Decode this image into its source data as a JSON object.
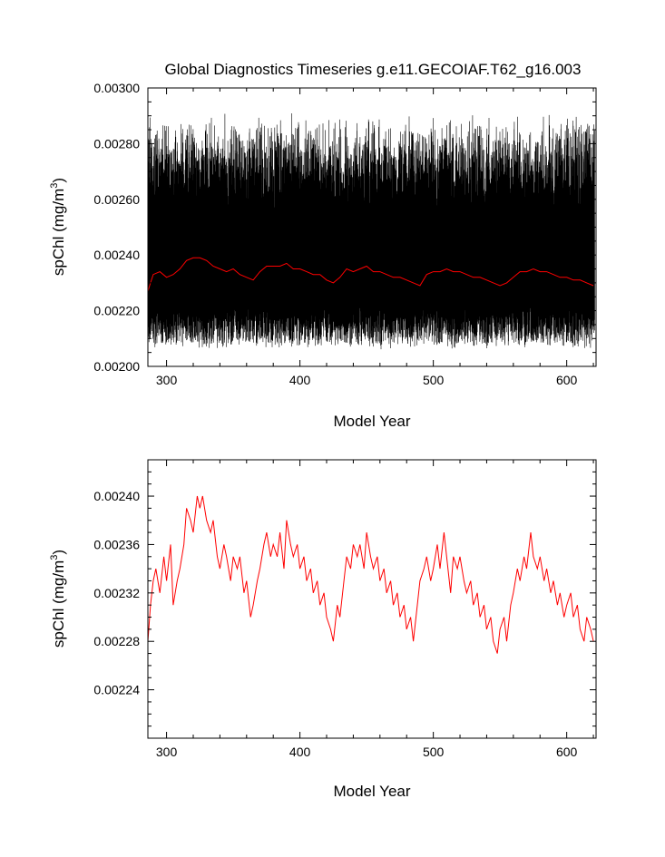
{
  "chart_data": [
    {
      "type": "line",
      "title": "Global Diagnostics Timeseries g.e11.GECOIAF.T62_g16.003",
      "xlabel": "Model Year",
      "ylabel": "spChl (mg/m",
      "ylabel_sup": "3",
      "ylabel_close": ")",
      "xlim": [
        286,
        622
      ],
      "ylim": [
        0.002,
        0.003
      ],
      "x_ticks": [
        300,
        400,
        500,
        600
      ],
      "x_tick_labels": [
        "300",
        "400",
        "500",
        "600"
      ],
      "y_ticks": [
        0.002,
        0.0022,
        0.0024,
        0.0026,
        0.0028,
        0.003
      ],
      "y_tick_labels": [
        "0.00200",
        "0.00220",
        "0.00240",
        "0.00260",
        "0.00280",
        "0.00300"
      ],
      "grid": false,
      "series": [
        {
          "color": "#000000",
          "description_seasonal": {
            "x_start": 286,
            "x_end": 621,
            "annual_range_low": 0.00212,
            "annual_range_high": 0.0028,
            "samples_per_year": 12
          }
        },
        {
          "color": "#ff0000",
          "x": [
            286,
            288,
            290,
            295,
            300,
            305,
            310,
            315,
            320,
            325,
            330,
            335,
            340,
            345,
            350,
            355,
            360,
            365,
            370,
            375,
            380,
            385,
            390,
            395,
            400,
            405,
            410,
            415,
            420,
            425,
            430,
            435,
            440,
            445,
            450,
            455,
            460,
            465,
            470,
            475,
            480,
            485,
            490,
            495,
            500,
            505,
            510,
            515,
            520,
            525,
            530,
            535,
            540,
            545,
            550,
            555,
            560,
            565,
            570,
            575,
            580,
            585,
            590,
            595,
            600,
            605,
            610,
            615,
            620
          ],
          "values": [
            0.00227,
            0.0023,
            0.00233,
            0.00234,
            0.00232,
            0.00233,
            0.00235,
            0.00238,
            0.00239,
            0.00239,
            0.00238,
            0.00236,
            0.00235,
            0.00234,
            0.00235,
            0.00233,
            0.00232,
            0.00231,
            0.00234,
            0.00236,
            0.00236,
            0.00236,
            0.00237,
            0.00235,
            0.00235,
            0.00234,
            0.00233,
            0.00233,
            0.00231,
            0.0023,
            0.00232,
            0.00235,
            0.00234,
            0.00235,
            0.00236,
            0.00234,
            0.00234,
            0.00233,
            0.00232,
            0.00232,
            0.00231,
            0.0023,
            0.00229,
            0.00233,
            0.00234,
            0.00234,
            0.00235,
            0.00234,
            0.00234,
            0.00233,
            0.00232,
            0.00232,
            0.00231,
            0.0023,
            0.00229,
            0.0023,
            0.00232,
            0.00234,
            0.00234,
            0.00235,
            0.00234,
            0.00234,
            0.00233,
            0.00232,
            0.00232,
            0.00231,
            0.00231,
            0.0023,
            0.00229
          ]
        }
      ]
    },
    {
      "type": "line",
      "title": "",
      "xlabel": "Model Year",
      "ylabel": "spChl (mg/m",
      "ylabel_sup": "3",
      "ylabel_close": ")",
      "xlim": [
        286,
        622
      ],
      "ylim": [
        0.0022,
        0.00243
      ],
      "x_ticks": [
        300,
        400,
        500,
        600
      ],
      "x_tick_labels": [
        "300",
        "400",
        "500",
        "600"
      ],
      "y_ticks": [
        0.00224,
        0.00228,
        0.00232,
        0.00236,
        0.0024
      ],
      "y_tick_labels": [
        "0.00224",
        "0.00228",
        "0.00232",
        "0.00236",
        "0.00240"
      ],
      "grid": false,
      "series": [
        {
          "color": "#ff0000",
          "x": [
            286,
            288,
            290,
            292,
            295,
            298,
            300,
            303,
            305,
            308,
            310,
            313,
            315,
            318,
            320,
            323,
            325,
            327,
            330,
            333,
            335,
            338,
            340,
            343,
            345,
            348,
            350,
            353,
            355,
            358,
            360,
            363,
            365,
            368,
            370,
            373,
            375,
            378,
            380,
            383,
            385,
            388,
            390,
            393,
            395,
            398,
            400,
            403,
            405,
            408,
            410,
            413,
            415,
            418,
            420,
            423,
            425,
            428,
            430,
            433,
            435,
            438,
            440,
            443,
            445,
            448,
            450,
            453,
            455,
            458,
            460,
            463,
            465,
            468,
            470,
            473,
            475,
            478,
            480,
            483,
            485,
            488,
            490,
            493,
            495,
            498,
            500,
            503,
            505,
            508,
            510,
            513,
            515,
            518,
            520,
            523,
            525,
            528,
            530,
            533,
            535,
            538,
            540,
            543,
            545,
            548,
            550,
            553,
            555,
            558,
            560,
            563,
            565,
            568,
            570,
            573,
            575,
            578,
            580,
            583,
            585,
            588,
            590,
            593,
            595,
            598,
            600,
            603,
            605,
            608,
            610,
            613,
            615,
            618,
            620
          ],
          "values": [
            0.00228,
            0.00231,
            0.00233,
            0.00234,
            0.00232,
            0.00235,
            0.00233,
            0.00236,
            0.00231,
            0.00233,
            0.00234,
            0.00236,
            0.00239,
            0.00238,
            0.00237,
            0.0024,
            0.00239,
            0.0024,
            0.00238,
            0.00237,
            0.00238,
            0.00235,
            0.00234,
            0.00236,
            0.00235,
            0.00233,
            0.00235,
            0.00234,
            0.00235,
            0.00232,
            0.00233,
            0.0023,
            0.00231,
            0.00233,
            0.00234,
            0.00236,
            0.00237,
            0.00235,
            0.00236,
            0.00235,
            0.00237,
            0.00234,
            0.00238,
            0.00236,
            0.00235,
            0.00236,
            0.00234,
            0.00235,
            0.00233,
            0.00234,
            0.00232,
            0.00233,
            0.00231,
            0.00232,
            0.0023,
            0.00229,
            0.00228,
            0.00231,
            0.0023,
            0.00233,
            0.00235,
            0.00234,
            0.00236,
            0.00235,
            0.00236,
            0.00234,
            0.00237,
            0.00235,
            0.00234,
            0.00235,
            0.00233,
            0.00234,
            0.00232,
            0.00233,
            0.00231,
            0.00232,
            0.0023,
            0.00231,
            0.00229,
            0.0023,
            0.00228,
            0.00231,
            0.00233,
            0.00234,
            0.00235,
            0.00233,
            0.00234,
            0.00236,
            0.00234,
            0.00237,
            0.00235,
            0.00232,
            0.00235,
            0.00234,
            0.00235,
            0.00233,
            0.00232,
            0.00233,
            0.00231,
            0.00232,
            0.0023,
            0.00231,
            0.00229,
            0.0023,
            0.00228,
            0.00227,
            0.00229,
            0.0023,
            0.00228,
            0.00231,
            0.00232,
            0.00234,
            0.00233,
            0.00235,
            0.00234,
            0.00237,
            0.00235,
            0.00234,
            0.00235,
            0.00233,
            0.00234,
            0.00232,
            0.00233,
            0.00231,
            0.00232,
            0.0023,
            0.00231,
            0.00232,
            0.0023,
            0.00231,
            0.00229,
            0.00228,
            0.0023,
            0.00229,
            0.00228
          ]
        }
      ]
    }
  ]
}
